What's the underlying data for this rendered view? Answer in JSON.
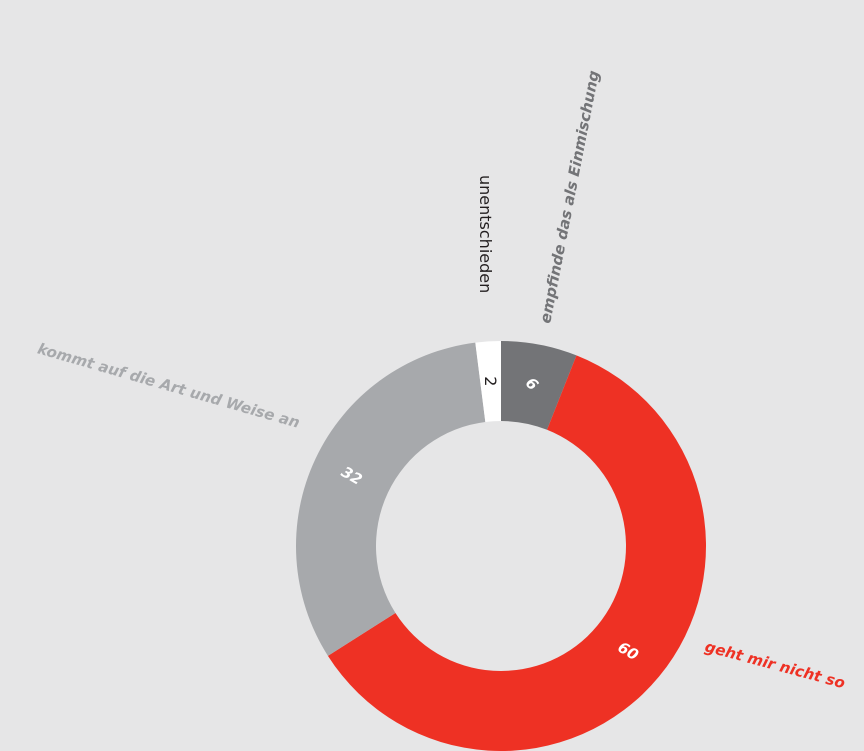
{
  "chart_data": {
    "type": "pie",
    "variant": "donut",
    "start": "top, clockwise",
    "slices": [
      {
        "label": "empfinde das als Einmischung",
        "value": 6,
        "color": "#737477",
        "value_color": "#ffffff",
        "label_color": "#737477",
        "label_style": "bold-italic"
      },
      {
        "label": "geht mir nicht so",
        "value": 60,
        "color": "#ee3124",
        "value_color": "#ffffff",
        "label_color": "#ee3124",
        "label_style": "bold-italic"
      },
      {
        "label": "kommt auf die Art und Weise an",
        "value": 32,
        "color": "#a7a9ac",
        "value_color": "#ffffff",
        "label_color": "#a7a9ac",
        "label_style": "bold-italic"
      },
      {
        "label": "unentschieden",
        "value": 2,
        "color": "#ffffff",
        "value_color": "#231f20",
        "label_color": "#231f20",
        "label_style": "regular"
      }
    ],
    "background": "#e6e6e7"
  }
}
